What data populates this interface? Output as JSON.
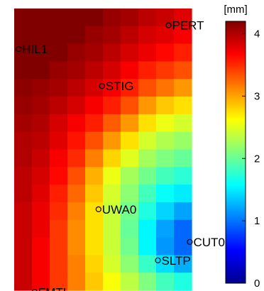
{
  "chart_data": {
    "type": "heatmap",
    "title": "",
    "grid_rows": 16,
    "grid_cols": 10,
    "values_mm": [
      [
        4.35,
        4.3,
        4.3,
        4.25,
        4.2,
        4.1,
        4.05,
        3.95,
        3.9,
        3.8
      ],
      [
        4.3,
        4.3,
        4.25,
        4.2,
        4.1,
        4.05,
        3.95,
        3.85,
        3.8,
        3.7
      ],
      [
        4.25,
        4.25,
        4.2,
        4.1,
        4.05,
        3.95,
        3.85,
        3.75,
        3.65,
        3.55
      ],
      [
        4.2,
        4.2,
        4.1,
        4.05,
        3.95,
        3.85,
        3.7,
        3.55,
        3.45,
        3.35
      ],
      [
        4.15,
        4.1,
        4.05,
        3.95,
        3.85,
        3.7,
        3.55,
        3.35,
        3.2,
        3.05
      ],
      [
        4.1,
        4.05,
        3.95,
        3.85,
        3.7,
        3.55,
        3.35,
        3.05,
        2.85,
        2.75
      ],
      [
        4.05,
        4.0,
        3.85,
        3.7,
        3.55,
        3.3,
        3.05,
        2.75,
        2.55,
        2.45
      ],
      [
        4.0,
        3.95,
        3.8,
        3.6,
        3.35,
        3.05,
        2.75,
        2.45,
        2.3,
        2.2
      ],
      [
        4.0,
        3.9,
        3.7,
        3.5,
        3.15,
        2.8,
        2.5,
        2.25,
        2.1,
        2.0
      ],
      [
        3.95,
        3.85,
        3.65,
        3.35,
        2.95,
        2.55,
        2.25,
        2.05,
        1.85,
        1.75
      ],
      [
        3.95,
        3.8,
        3.55,
        3.25,
        2.85,
        2.45,
        2.15,
        1.85,
        1.6,
        1.5
      ],
      [
        3.9,
        3.75,
        3.5,
        3.15,
        2.75,
        2.4,
        2.05,
        1.7,
        1.4,
        1.2
      ],
      [
        3.9,
        3.75,
        3.45,
        3.1,
        2.75,
        2.4,
        2.0,
        1.55,
        1.2,
        0.95
      ],
      [
        3.9,
        3.7,
        3.45,
        3.1,
        2.75,
        2.4,
        2.05,
        1.55,
        1.15,
        0.95
      ],
      [
        3.9,
        3.7,
        3.45,
        3.15,
        2.8,
        2.45,
        2.15,
        1.8,
        1.45,
        1.25
      ],
      [
        3.9,
        3.7,
        3.45,
        3.15,
        2.85,
        2.6,
        2.35,
        2.1,
        1.85,
        1.7
      ]
    ],
    "stations": [
      {
        "name": "PERT",
        "col": 8.2,
        "row": 0.45
      },
      {
        "name": "HIL1",
        "col": -0.25,
        "row": 1.8
      },
      {
        "name": "STIG",
        "col": 4.45,
        "row": 3.9
      },
      {
        "name": "UWA0",
        "col": 4.25,
        "row": 10.9
      },
      {
        "name": "CUT0",
        "col": 9.4,
        "row": 12.75
      },
      {
        "name": "SLTP",
        "col": 7.6,
        "row": 13.8
      },
      {
        "name": "FMTL",
        "col": 0.65,
        "row": 15.6
      }
    ],
    "colorbar": {
      "unit": "[mm]",
      "min": 0,
      "max": 4.2,
      "ticks": [
        0,
        1,
        2,
        3,
        4
      ],
      "colormap": "jet"
    }
  }
}
